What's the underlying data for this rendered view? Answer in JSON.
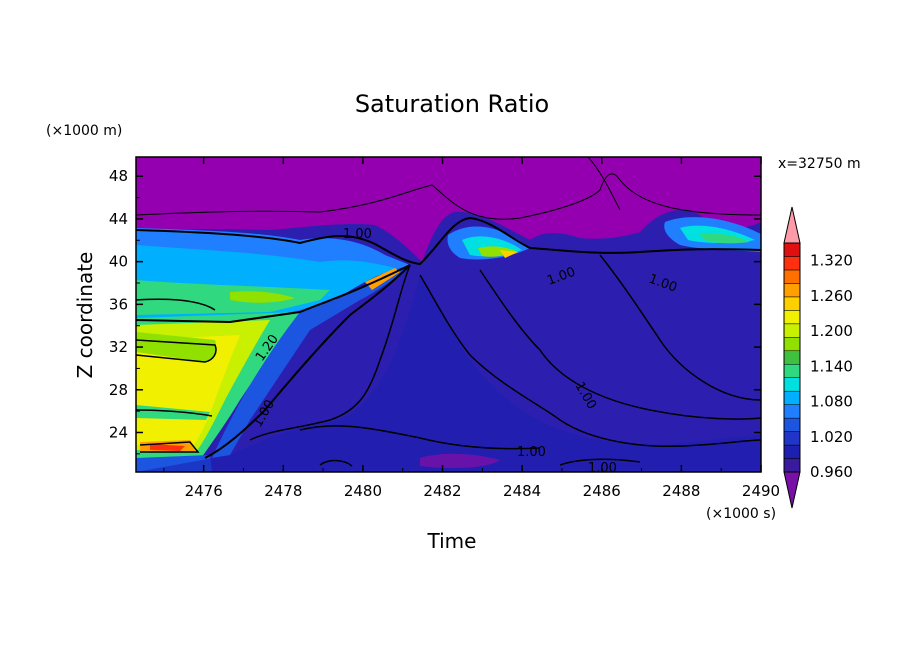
{
  "chart_data": {
    "type": "heatmap",
    "title": "Saturation Ratio",
    "subtitle": "x=32750 m",
    "xlabel": "Time",
    "ylabel": "Z coordinate",
    "x_scale_label": "(×1000 s)",
    "y_scale_label": "(×1000 m)",
    "xlim": [
      2474.3,
      2490
    ],
    "ylim": [
      20.3,
      49.8
    ],
    "x_ticks": [
      "2476",
      "2478",
      "2480",
      "2482",
      "2484",
      "2486",
      "2488",
      "2490"
    ],
    "y_ticks": [
      "24",
      "28",
      "32",
      "36",
      "40",
      "44",
      "48"
    ],
    "colorbar": {
      "levels": [
        "0.960",
        "1.020",
        "1.080",
        "1.140",
        "1.200",
        "1.260",
        "1.320"
      ],
      "min": 0.96,
      "max": 1.35,
      "step": 0.02,
      "extend": "both",
      "colors": [
        "#7a0fa8",
        "#3a1b9e",
        "#1c1fb0",
        "#2136c8",
        "#1c55e0",
        "#1f7fff",
        "#00b0ff",
        "#00e0e0",
        "#30d880",
        "#40c040",
        "#90e000",
        "#c8f000",
        "#f0f000",
        "#ffd000",
        "#ffa000",
        "#ff7000",
        "#ff3010",
        "#e01010",
        "#ff9aa8"
      ]
    },
    "contour_labels": [
      "1.00",
      "1.00",
      "1.00",
      "1.00",
      "1.00",
      "1.20",
      "1.00",
      "1.00"
    ],
    "colors": {
      "above_cloud": "#9400b0",
      "subsaturated": "#2c1fb0",
      "supersaturated_high": "#f0f000"
    }
  }
}
